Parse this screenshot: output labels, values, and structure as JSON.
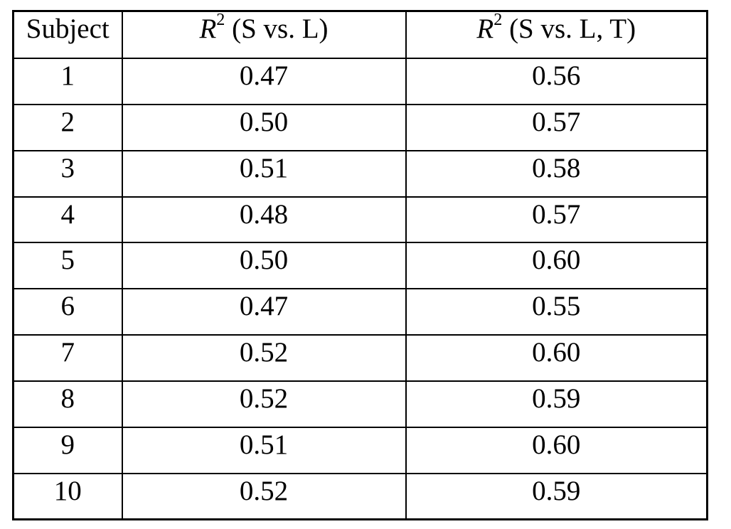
{
  "page": {
    "background_color": "#ffffff",
    "text_color": "#000000",
    "border_color": "#000000"
  },
  "table": {
    "header": {
      "col1": "Subject",
      "col2": {
        "variable": "R",
        "sup": "2",
        "rest": " (S vs. L)"
      },
      "col3": {
        "variable": "R",
        "sup": "2",
        "rest": " (S vs. L, T)"
      }
    },
    "rows": [
      {
        "subject": "1",
        "r2_s_l": "0.47",
        "r2_s_l_t": "0.56"
      },
      {
        "subject": "2",
        "r2_s_l": "0.50",
        "r2_s_l_t": "0.57"
      },
      {
        "subject": "3",
        "r2_s_l": "0.51",
        "r2_s_l_t": "0.58"
      },
      {
        "subject": "4",
        "r2_s_l": "0.48",
        "r2_s_l_t": "0.57"
      },
      {
        "subject": "5",
        "r2_s_l": "0.50",
        "r2_s_l_t": "0.60"
      },
      {
        "subject": "6",
        "r2_s_l": "0.47",
        "r2_s_l_t": "0.55"
      },
      {
        "subject": "7",
        "r2_s_l": "0.52",
        "r2_s_l_t": "0.60"
      },
      {
        "subject": "8",
        "r2_s_l": "0.52",
        "r2_s_l_t": "0.59"
      },
      {
        "subject": "9",
        "r2_s_l": "0.51",
        "r2_s_l_t": "0.60"
      },
      {
        "subject": "10",
        "r2_s_l": "0.52",
        "r2_s_l_t": "0.59"
      }
    ]
  },
  "chart_data": {
    "type": "table",
    "columns": [
      "Subject",
      "R^2 (S vs. L)",
      "R^2 (S vs. L, T)"
    ],
    "rows": [
      [
        1,
        0.47,
        0.56
      ],
      [
        2,
        0.5,
        0.57
      ],
      [
        3,
        0.51,
        0.58
      ],
      [
        4,
        0.48,
        0.57
      ],
      [
        5,
        0.5,
        0.6
      ],
      [
        6,
        0.47,
        0.55
      ],
      [
        7,
        0.52,
        0.6
      ],
      [
        8,
        0.52,
        0.59
      ],
      [
        9,
        0.51,
        0.6
      ],
      [
        10,
        0.52,
        0.59
      ]
    ]
  }
}
